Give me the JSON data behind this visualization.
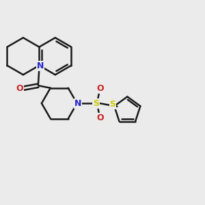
{
  "bg_color": "#ebebeb",
  "bond_color": "#1a1a1a",
  "n_color": "#2222cc",
  "o_color": "#cc2222",
  "s_color": "#cccc00",
  "bond_width": 1.8,
  "fig_size": [
    3.0,
    3.0
  ],
  "dpi": 100,
  "xlim": [
    0,
    10
  ],
  "ylim": [
    0,
    10
  ]
}
